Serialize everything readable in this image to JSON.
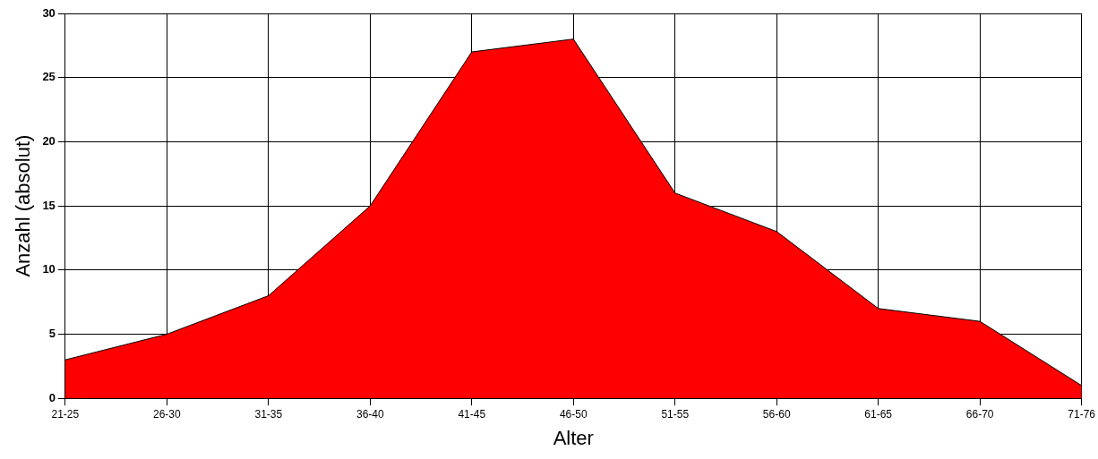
{
  "chart_data": {
    "type": "area",
    "xlabel": "Alter",
    "ylabel": "Anzahl (absolut)",
    "categories": [
      "21-25",
      "26-30",
      "31-35",
      "36-40",
      "41-45",
      "46-50",
      "51-55",
      "56-60",
      "61-65",
      "66-70",
      "71-76"
    ],
    "series": [
      {
        "color": "#ff0000",
        "values": [
          3,
          5,
          8,
          15,
          27,
          28,
          16,
          13,
          7,
          6,
          1
        ]
      }
    ],
    "ylim": [
      0,
      30
    ],
    "yticks": [
      0,
      5,
      10,
      15,
      20,
      25,
      30
    ],
    "grid": true,
    "legend": false
  }
}
